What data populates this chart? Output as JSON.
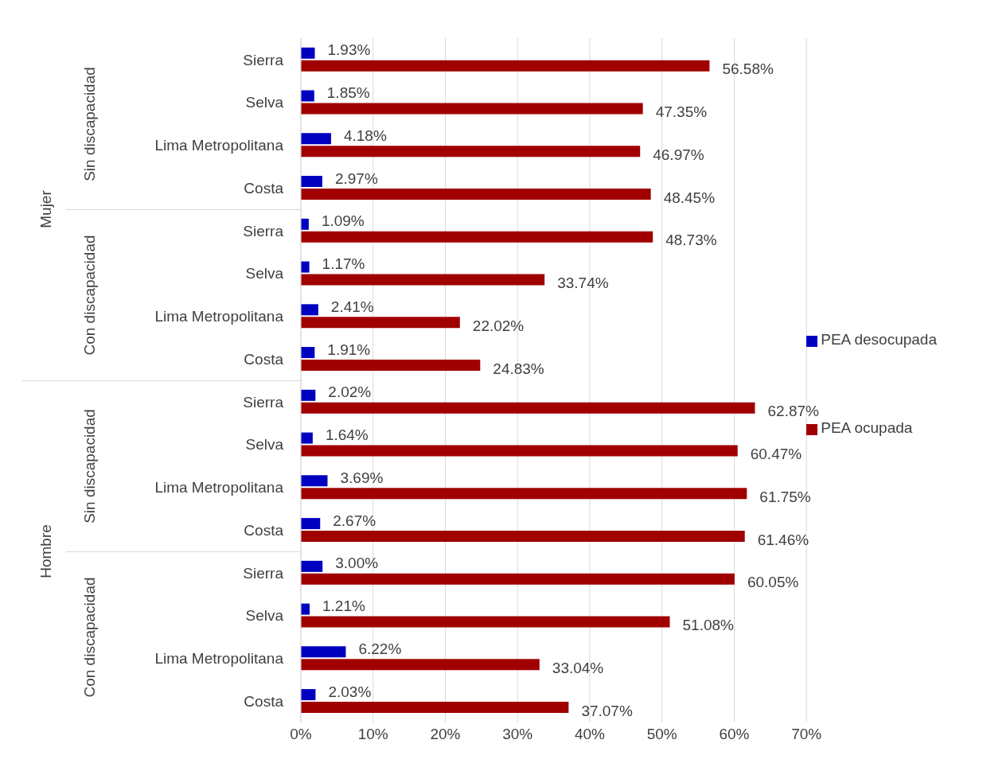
{
  "chart_data": {
    "type": "bar",
    "orientation": "horizontal",
    "categories": [
      "Sierra",
      "Selva",
      "Lima Metropolitana",
      "Costa",
      "Sierra",
      "Selva",
      "Lima Metropolitana",
      "Costa",
      "Sierra",
      "Selva",
      "Lima Metropolitana",
      "Costa",
      "Sierra",
      "Selva",
      "Lima Metropolitana",
      "Costa"
    ],
    "series": [
      {
        "name": "PEA desocupada",
        "color": "#0000c0",
        "values": [
          1.93,
          1.85,
          4.18,
          2.97,
          1.09,
          1.17,
          2.41,
          1.91,
          2.02,
          1.64,
          3.69,
          2.67,
          3.0,
          1.21,
          6.22,
          2.03
        ],
        "value_labels": [
          "1.93%",
          "1.85%",
          "4.18%",
          "2.97%",
          "1.09%",
          "1.17%",
          "2.41%",
          "1.91%",
          "2.02%",
          "1.64%",
          "3.69%",
          "2.67%",
          "3.00%",
          "1.21%",
          "6.22%",
          "2.03%"
        ]
      },
      {
        "name": "PEA ocupada",
        "color": "#a00000",
        "values": [
          56.58,
          47.35,
          46.97,
          48.45,
          48.73,
          33.74,
          22.02,
          24.83,
          62.87,
          60.47,
          61.75,
          61.46,
          60.05,
          51.08,
          33.04,
          37.07
        ],
        "value_labels": [
          "56.58%",
          "47.35%",
          "46.97%",
          "48.45%",
          "48.73%",
          "33.74%",
          "22.02%",
          "24.83%",
          "62.87%",
          "60.47%",
          "61.75%",
          "61.46%",
          "60.05%",
          "51.08%",
          "33.04%",
          "37.07%"
        ]
      }
    ],
    "xlim": [
      0,
      70
    ],
    "xticks": [
      {
        "value": 0,
        "label": "0%"
      },
      {
        "value": 10,
        "label": "10%"
      },
      {
        "value": 20,
        "label": "20%"
      },
      {
        "value": 30,
        "label": "30%"
      },
      {
        "value": 40,
        "label": "40%"
      },
      {
        "value": 50,
        "label": "50%"
      },
      {
        "value": 60,
        "label": "60%"
      },
      {
        "value": 70,
        "label": "70%"
      }
    ],
    "annotations": [
      "Mujer",
      "Hombre",
      "Sin discapacidad",
      "Con discapacidad",
      "Sin discapacidad",
      "Con discapacidad"
    ],
    "grid": "x",
    "legend": "right"
  }
}
